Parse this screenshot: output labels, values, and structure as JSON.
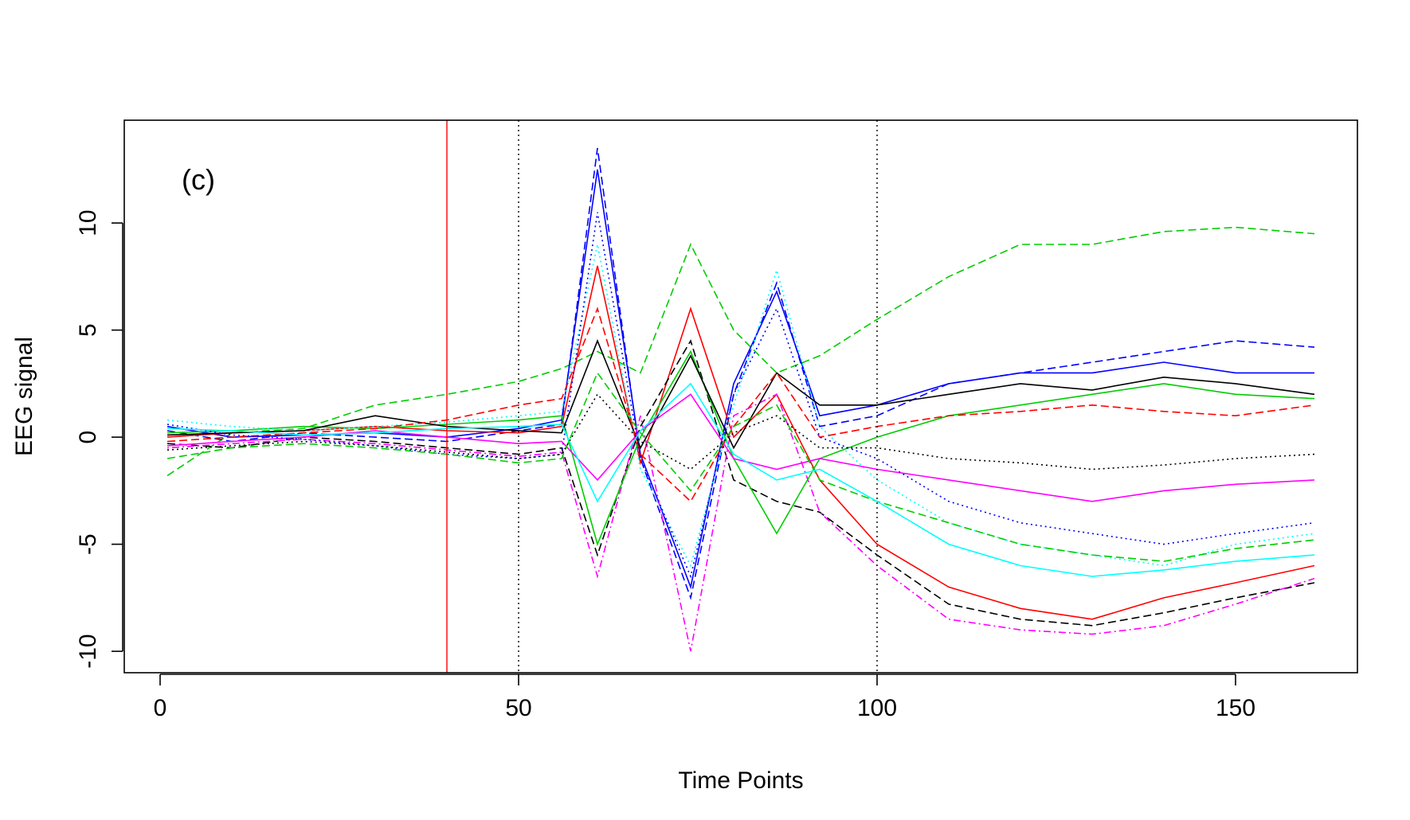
{
  "chart_data": {
    "type": "line",
    "panel_label": "(c)",
    "xlabel": "Time Points",
    "ylabel": "EEG signal",
    "xlim": [
      -5,
      167
    ],
    "ylim": [
      -11,
      14.8
    ],
    "x_ticks": [
      0,
      50,
      100,
      150
    ],
    "y_ticks": [
      -10,
      -5,
      0,
      5,
      10
    ],
    "x_tick_labels": [
      "0",
      "50",
      "100",
      "150"
    ],
    "y_tick_labels": [
      "-10",
      "-5",
      "0",
      "5",
      "10"
    ],
    "grid": false,
    "legend": "none",
    "reference_lines": [
      {
        "x": 40,
        "color": "#ff0000",
        "style": "solid"
      },
      {
        "x": 50,
        "color": "#000000",
        "style": "dotted"
      },
      {
        "x": 100,
        "color": "#000000",
        "style": "dotted"
      }
    ],
    "series_colors": [
      "#000000",
      "#ff0000",
      "#00cd00",
      "#0000ff",
      "#00ffff",
      "#ff00ff"
    ],
    "x_range": [
      1,
      161
    ],
    "n_series_shown": "approximately 150 overlaid EEG traces (values estimated; individual traces are not labeled)",
    "series": [
      {
        "color": "#00cd00",
        "style": "dashed",
        "x": [
          1,
          10,
          20,
          30,
          40,
          50,
          56,
          61,
          67,
          74,
          80,
          86,
          92,
          100,
          110,
          120,
          130,
          140,
          150,
          161
        ],
        "y": [
          -1.8,
          0.2,
          0.4,
          1.5,
          2,
          2.6,
          3.2,
          4,
          3,
          9,
          5,
          3,
          3.8,
          5.5,
          7.5,
          9,
          9,
          9.6,
          9.8,
          9.5
        ]
      },
      {
        "color": "#0000ff",
        "style": "dashed",
        "x": [
          1,
          10,
          20,
          30,
          40,
          50,
          56,
          61,
          67,
          74,
          80,
          86,
          92,
          100,
          110,
          120,
          130,
          140,
          150,
          161
        ],
        "y": [
          0.3,
          -0.2,
          0.2,
          0,
          -0.2,
          0.3,
          0.6,
          13.5,
          -1,
          -7.5,
          2,
          7.2,
          0.5,
          1,
          2.5,
          3,
          3.5,
          4,
          4.5,
          4.2
        ]
      },
      {
        "color": "#0000ff",
        "style": "solid",
        "x": [
          1,
          10,
          20,
          30,
          40,
          50,
          56,
          61,
          67,
          74,
          80,
          86,
          92,
          100,
          110,
          120,
          130,
          140,
          150,
          161
        ],
        "y": [
          0.5,
          0,
          0.1,
          0.2,
          0,
          0.4,
          0.8,
          12.5,
          -0.8,
          -7,
          2.5,
          6.8,
          1,
          1.5,
          2.5,
          3,
          3,
          3.5,
          3,
          3
        ]
      },
      {
        "color": "#ff0000",
        "style": "solid",
        "x": [
          1,
          10,
          20,
          30,
          40,
          50,
          56,
          61,
          67,
          74,
          80,
          86,
          92,
          100,
          110,
          120,
          130,
          140,
          150,
          161
        ],
        "y": [
          0,
          0.2,
          0.3,
          0.5,
          0.3,
          0.2,
          0.5,
          8,
          -1.2,
          6,
          0,
          2,
          -2,
          -5,
          -7,
          -8,
          -8.5,
          -7.5,
          -6.8,
          -6
        ]
      },
      {
        "color": "#000000",
        "style": "dashed",
        "x": [
          1,
          10,
          20,
          30,
          40,
          50,
          56,
          61,
          67,
          74,
          80,
          86,
          92,
          100,
          110,
          120,
          130,
          140,
          150,
          161
        ],
        "y": [
          -0.3,
          -0.5,
          0,
          -0.2,
          -0.5,
          -0.8,
          -0.5,
          -5.5,
          0.5,
          4.5,
          -2,
          -3,
          -3.5,
          -5.5,
          -7.8,
          -8.5,
          -8.8,
          -8.2,
          -7.5,
          -6.8
        ]
      },
      {
        "color": "#ff00ff",
        "style": "dotdash",
        "x": [
          1,
          10,
          20,
          30,
          40,
          50,
          56,
          61,
          67,
          74,
          80,
          86,
          92,
          100,
          110,
          120,
          130,
          140,
          150,
          161
        ],
        "y": [
          -0.5,
          -0.3,
          -0.1,
          -0.3,
          -0.6,
          -0.9,
          -0.7,
          -6.5,
          1,
          -10,
          1,
          2,
          -3.5,
          -6,
          -8.5,
          -9,
          -9.2,
          -8.8,
          -7.8,
          -6.6
        ]
      },
      {
        "color": "#00cd00",
        "style": "solid",
        "x": [
          1,
          10,
          20,
          30,
          40,
          50,
          56,
          61,
          67,
          74,
          80,
          86,
          92,
          100,
          110,
          120,
          130,
          140,
          150,
          161
        ],
        "y": [
          0.2,
          0.3,
          0.5,
          0.4,
          0.6,
          0.8,
          1,
          -5,
          0,
          4,
          -1,
          -4.5,
          -1,
          0,
          1,
          1.5,
          2,
          2.5,
          2,
          1.8
        ]
      },
      {
        "color": "#00ffff",
        "style": "dotted",
        "x": [
          1,
          10,
          20,
          30,
          40,
          50,
          56,
          61,
          67,
          74,
          80,
          86,
          92,
          100,
          110,
          120,
          130,
          140,
          150,
          161
        ],
        "y": [
          0.8,
          0.5,
          0.3,
          0.5,
          0.7,
          1,
          1.2,
          9,
          -1.5,
          -6,
          1.5,
          7.8,
          0.5,
          -2,
          -4,
          -5,
          -5.5,
          -6,
          -5,
          -4.5
        ]
      },
      {
        "color": "#000000",
        "style": "solid",
        "x": [
          1,
          10,
          20,
          30,
          40,
          50,
          56,
          61,
          67,
          74,
          80,
          86,
          92,
          100,
          110,
          120,
          130,
          140,
          150,
          161
        ],
        "y": [
          0.1,
          0.2,
          0.3,
          1,
          0.5,
          0.3,
          0.2,
          4.5,
          -0.5,
          3.8,
          -0.5,
          3,
          1.5,
          1.5,
          2,
          2.5,
          2.2,
          2.8,
          2.5,
          2
        ]
      },
      {
        "color": "#ff0000",
        "style": "dashed",
        "x": [
          1,
          10,
          20,
          30,
          40,
          50,
          56,
          61,
          67,
          74,
          80,
          86,
          92,
          100,
          110,
          120,
          130,
          140,
          150,
          161
        ],
        "y": [
          -0.2,
          0,
          0.2,
          0.4,
          0.8,
          1.5,
          1.8,
          6,
          -0.8,
          -3,
          0.5,
          3,
          0,
          0.5,
          1,
          1.2,
          1.5,
          1.2,
          1,
          1.5
        ]
      },
      {
        "color": "#ff00ff",
        "style": "solid",
        "x": [
          1,
          10,
          20,
          30,
          40,
          50,
          56,
          61,
          67,
          74,
          80,
          86,
          92,
          100,
          110,
          120,
          130,
          140,
          150,
          161
        ],
        "y": [
          -0.4,
          -0.2,
          0,
          0.3,
          0,
          -0.3,
          -0.2,
          -2,
          0.3,
          2,
          -1,
          -1.5,
          -1,
          -1.5,
          -2,
          -2.5,
          -3,
          -2.5,
          -2.2,
          -2
        ]
      },
      {
        "color": "#0000ff",
        "style": "dotted",
        "x": [
          1,
          10,
          20,
          30,
          40,
          50,
          56,
          61,
          67,
          74,
          80,
          86,
          92,
          100,
          110,
          120,
          130,
          140,
          150,
          161
        ],
        "y": [
          0.6,
          0.1,
          -0.1,
          -0.4,
          -0.8,
          -1,
          -0.8,
          10.5,
          -1,
          -6.5,
          2,
          6,
          0,
          -1,
          -3,
          -4,
          -4.5,
          -5,
          -4.5,
          -4
        ]
      },
      {
        "color": "#00cd00",
        "style": "dashed",
        "x": [
          1,
          10,
          20,
          30,
          40,
          50,
          56,
          61,
          67,
          74,
          80,
          86,
          92,
          100,
          110,
          120,
          130,
          140,
          150,
          161
        ],
        "y": [
          -1,
          -0.5,
          -0.3,
          -0.5,
          -0.8,
          -1.2,
          -1,
          3,
          0.2,
          -2.5,
          0.5,
          1.5,
          -2,
          -3,
          -4,
          -5,
          -5.5,
          -5.8,
          -5.2,
          -4.8
        ]
      },
      {
        "color": "#00ffff",
        "style": "solid",
        "x": [
          1,
          10,
          20,
          30,
          40,
          50,
          56,
          61,
          67,
          74,
          80,
          86,
          92,
          100,
          110,
          120,
          130,
          140,
          150,
          161
        ],
        "y": [
          0.4,
          0.3,
          0.1,
          0.2,
          0.4,
          0.5,
          0.6,
          -3,
          0.3,
          2.5,
          -0.8,
          -2,
          -1.5,
          -3,
          -5,
          -6,
          -6.5,
          -6.2,
          -5.8,
          -5.5
        ]
      },
      {
        "color": "#000000",
        "style": "dotted",
        "x": [
          1,
          10,
          20,
          30,
          40,
          50,
          56,
          61,
          67,
          74,
          80,
          86,
          92,
          100,
          110,
          120,
          130,
          140,
          150,
          161
        ],
        "y": [
          -0.6,
          -0.4,
          -0.2,
          -0.4,
          -0.7,
          -1,
          -0.8,
          2,
          -0.2,
          -1.5,
          0.2,
          1,
          -0.5,
          -0.5,
          -1,
          -1.2,
          -1.5,
          -1.3,
          -1,
          -0.8
        ]
      }
    ]
  }
}
